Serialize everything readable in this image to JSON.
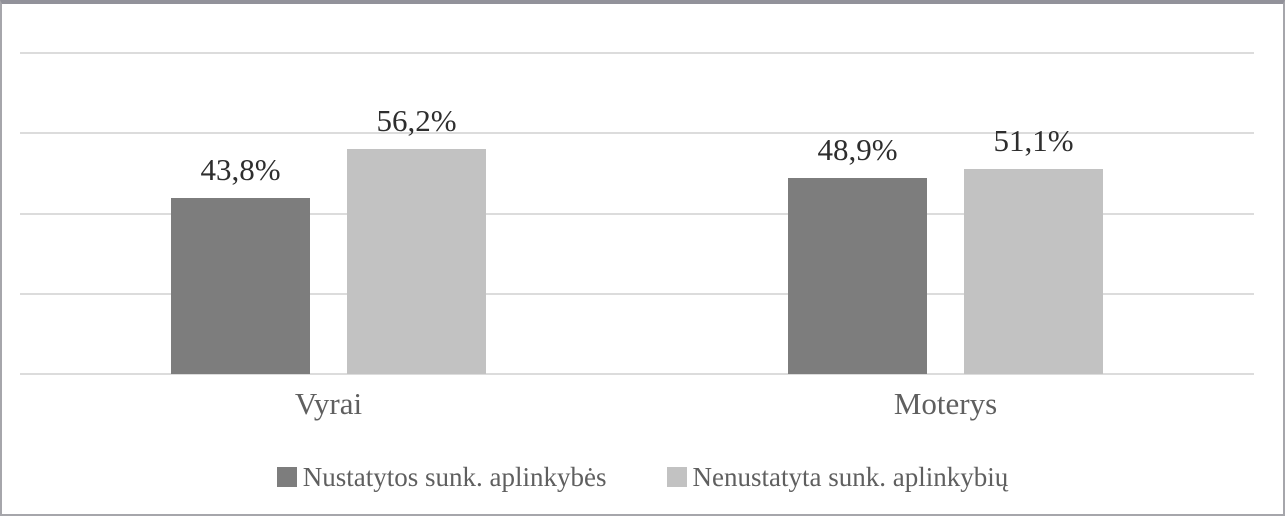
{
  "chart_data": {
    "type": "bar",
    "title": "",
    "xlabel": "",
    "ylabel": "",
    "categories": [
      "Vyrai",
      "Moterys"
    ],
    "series": [
      {
        "name": "Nustatytos sunk. aplinkybės",
        "color": "#7d7d7d",
        "values": [
          43.8,
          48.9
        ],
        "labels": [
          "43,8%",
          "48,9%"
        ]
      },
      {
        "name": "Nenustatyta sunk. aplinkybių",
        "color": "#c2c2c2",
        "values": [
          56.2,
          51.1
        ],
        "labels": [
          "56,2%",
          "51,1%"
        ]
      }
    ],
    "value_unit": "%",
    "decimal_separator": ",",
    "ylim": [
      0,
      80
    ],
    "gridline_step": 20,
    "grid": true,
    "y_axis_tick_labels_visible": false,
    "legend_position": "bottom"
  },
  "colors": {
    "series1_bar": "#7d7d7d",
    "series2_bar": "#c2c2c2",
    "gridline": "#dcdcdc",
    "data_label_text": "#2e2e2e",
    "axis_text": "#5f5f5f",
    "frame_border": "#a6a6ab",
    "frame_border_top": "#92929a",
    "background": "#ffffff"
  }
}
